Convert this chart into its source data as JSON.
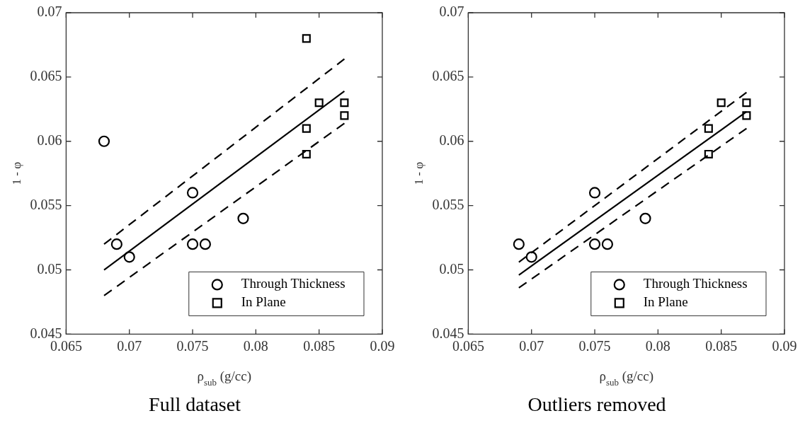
{
  "chart_data": [
    {
      "type": "scatter",
      "title": "Full dataset",
      "xlabel": "ρ$_{sub}$ (g/cc)",
      "ylabel": "1 - φ",
      "xlim": [
        0.065,
        0.09
      ],
      "xticks": [
        0.065,
        0.07,
        0.075,
        0.08,
        0.085,
        0.09
      ],
      "ylim": [
        0.045,
        0.07
      ],
      "yticks": [
        0.045,
        0.05,
        0.055,
        0.06,
        0.065,
        0.07
      ],
      "legend": "bottom right",
      "series": [
        {
          "name": "Through Thickness",
          "color": "#000000",
          "marker": "circle",
          "x": [
            0.068,
            0.069,
            0.07,
            0.075,
            0.075,
            0.076,
            0.079
          ],
          "values": [
            0.06,
            0.052,
            0.051,
            0.056,
            0.052,
            0.052,
            0.054
          ]
        },
        {
          "name": "In Plane",
          "color": "#000000",
          "marker": "square",
          "x": [
            0.084,
            0.084,
            0.084,
            0.085,
            0.087,
            0.087
          ],
          "values": [
            0.068,
            0.061,
            0.059,
            0.063,
            0.063,
            0.062
          ]
        },
        {
          "type": "line",
          "color": "#000000",
          "marker": "none",
          "line_style": "solid",
          "x": [
            0.068,
            0.087
          ],
          "values": [
            0.05,
            0.0639
          ]
        },
        {
          "type": "line",
          "color": "#000000",
          "marker": "none",
          "line_style": "dashed",
          "x": [
            0.068,
            0.087
          ],
          "values": [
            0.052,
            0.0664
          ]
        },
        {
          "type": "line",
          "color": "#000000",
          "marker": "none",
          "line_style": "dashed",
          "x": [
            0.068,
            0.087
          ],
          "values": [
            0.048,
            0.0614
          ]
        }
      ]
    },
    {
      "type": "scatter",
      "title": "Outliers removed",
      "xlabel": "ρ$_{sub}$ (g/cc)",
      "ylabel": "1 - φ",
      "xlim": [
        0.065,
        0.09
      ],
      "xticks": [
        0.065,
        0.07,
        0.075,
        0.08,
        0.085,
        0.09
      ],
      "ylim": [
        0.045,
        0.07
      ],
      "yticks": [
        0.045,
        0.05,
        0.055,
        0.06,
        0.065,
        0.07
      ],
      "legend": "bottom right",
      "series": [
        {
          "name": "Through Thickness",
          "color": "#000000",
          "marker": "circle",
          "x": [
            0.069,
            0.07,
            0.075,
            0.075,
            0.076,
            0.079
          ],
          "values": [
            0.052,
            0.051,
            0.056,
            0.052,
            0.052,
            0.054
          ]
        },
        {
          "name": "In Plane",
          "color": "#000000",
          "marker": "square",
          "x": [
            0.084,
            0.084,
            0.085,
            0.087,
            0.087
          ],
          "values": [
            0.061,
            0.059,
            0.063,
            0.063,
            0.062
          ]
        },
        {
          "type": "line",
          "color": "#000000",
          "marker": "none",
          "line_style": "solid",
          "x": [
            0.069,
            0.087
          ],
          "values": [
            0.0496,
            0.0623
          ]
        },
        {
          "type": "line",
          "color": "#000000",
          "marker": "none",
          "line_style": "dashed",
          "x": [
            0.069,
            0.087
          ],
          "values": [
            0.0506,
            0.0638
          ]
        },
        {
          "type": "line",
          "color": "#000000",
          "marker": "none",
          "line_style": "dashed",
          "x": [
            0.069,
            0.087
          ],
          "values": [
            0.0486,
            0.061
          ]
        }
      ]
    }
  ]
}
